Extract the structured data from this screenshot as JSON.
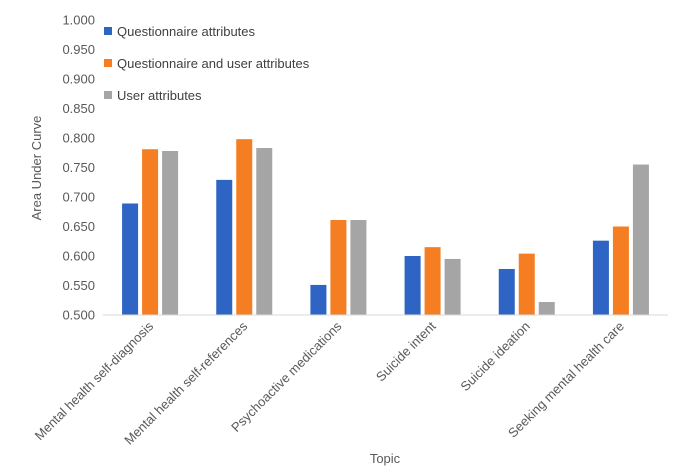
{
  "chart_data": {
    "type": "bar",
    "title": "",
    "xlabel": "Topic",
    "ylabel": "Area Under Curve",
    "ylim": [
      0.5,
      1.0
    ],
    "yticks": [
      "0.500",
      "0.550",
      "0.600",
      "0.650",
      "0.700",
      "0.750",
      "0.800",
      "0.850",
      "0.900",
      "0.950",
      "1.000"
    ],
    "grid": false,
    "legend_position": "top-left",
    "categories": [
      "Mental health self-diagnosis",
      "Mental health self-references",
      "Psychoactive medications",
      "Suicide intent",
      "Suicide ideation",
      "Seeking mental health care"
    ],
    "series": [
      {
        "name": "Questionnaire attributes",
        "color": "#2e64c4",
        "values": [
          0.689,
          0.729,
          0.551,
          0.6,
          0.578,
          0.626
        ]
      },
      {
        "name": "Questionnaire and user attributes",
        "color": "#f57e22",
        "values": [
          0.781,
          0.798,
          0.661,
          0.615,
          0.604,
          0.65
        ]
      },
      {
        "name": "User attributes",
        "color": "#a5a5a5",
        "values": [
          0.778,
          0.783,
          0.661,
          0.595,
          0.522,
          0.755
        ]
      }
    ]
  }
}
